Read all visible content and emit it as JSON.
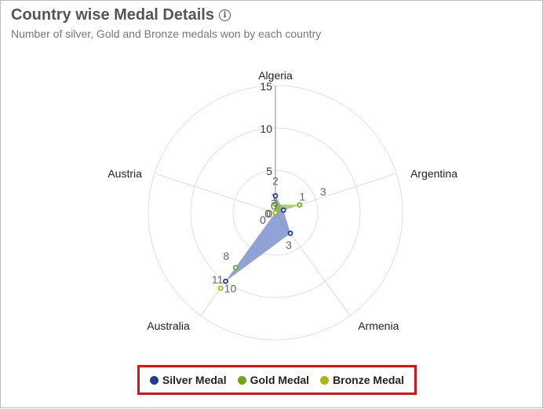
{
  "header": {
    "title": "Country wise Medal Details",
    "subtitle": "Number of silver, Gold and Bronze medals won by each country",
    "info_icon": "info-circle-icon"
  },
  "chart_data": {
    "type": "radar",
    "title": "Country wise Medal Details",
    "subtitle": "Number of silver, Gold and Bronze medals won by each country",
    "categories": [
      "Algeria",
      "Argentina",
      "Armenia",
      "Australia",
      "Austria"
    ],
    "radial_range": [
      0,
      15
    ],
    "radial_ticks": [
      0,
      5,
      10,
      15
    ],
    "grid": true,
    "legend_position": "bottom",
    "series": [
      {
        "name": "Silver Medal",
        "values": [
          2,
          1,
          3,
          10,
          0
        ],
        "color": "#1f3c99",
        "fill": "#6b84c6"
      },
      {
        "name": "Gold Medal",
        "values": [
          1,
          3,
          0,
          8,
          0
        ],
        "color": "#6aa517",
        "fill": "#8cc04a"
      },
      {
        "name": "Bronze Medal",
        "values": [
          0,
          0,
          0,
          11,
          0
        ],
        "color": "#a8b812",
        "fill": "#b9c43c"
      }
    ]
  },
  "legend": {
    "items": [
      {
        "label": "Silver Medal",
        "color": "#1f3c99"
      },
      {
        "label": "Gold Medal",
        "color": "#6aa517"
      },
      {
        "label": "Bronze Medal",
        "color": "#a8b812"
      }
    ]
  }
}
